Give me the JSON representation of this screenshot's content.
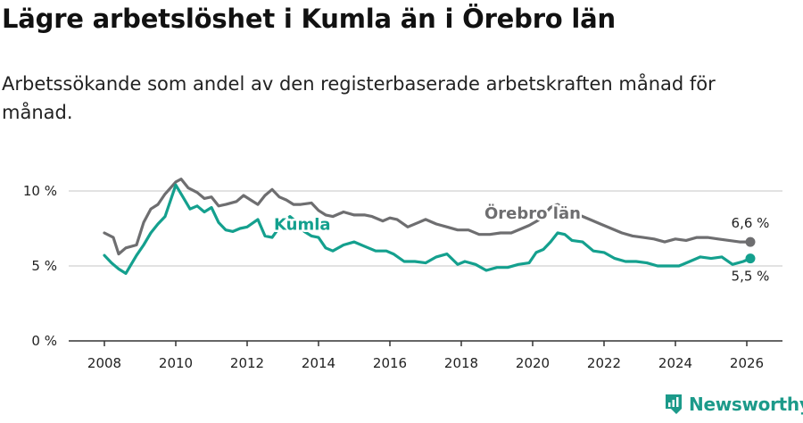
{
  "title": "Lägre arbetslöshet i Kumla än i Örebro län",
  "subtitle": "Arbetssökande som andel av den registerbaserade arbetskraften månad för månad.",
  "brand": {
    "name": "Newsworthy"
  },
  "colors": {
    "kumla": "#14a08e",
    "orebro": "#6e6e70",
    "grid": "#d9d9d9",
    "axis": "#333333"
  },
  "chart_data": {
    "type": "line",
    "title": "Lägre arbetslöshet i Kumla än i Örebro län",
    "xlabel": "",
    "ylabel": "",
    "xlim": [
      2007,
      2027
    ],
    "ylim": [
      0,
      10
    ],
    "x_ticks": [
      2008,
      2010,
      2012,
      2014,
      2016,
      2018,
      2020,
      2022,
      2024,
      2026
    ],
    "y_ticks": [
      {
        "value": 0,
        "label": "0 %"
      },
      {
        "value": 5,
        "label": "5 %"
      },
      {
        "value": 10,
        "label": "10 %"
      }
    ],
    "series": [
      {
        "name": "Örebro län",
        "label": "Örebro län",
        "end_label": "6,6 %",
        "x": [
          2008.0,
          2008.25,
          2008.4,
          2008.6,
          2008.9,
          2009.1,
          2009.3,
          2009.5,
          2009.7,
          2010.0,
          2010.15,
          2010.35,
          2010.6,
          2010.8,
          2011.0,
          2011.2,
          2011.4,
          2011.7,
          2011.9,
          2012.1,
          2012.3,
          2012.5,
          2012.7,
          2012.9,
          2013.1,
          2013.3,
          2013.5,
          2013.8,
          2014.0,
          2014.2,
          2014.4,
          2014.7,
          2015.0,
          2015.3,
          2015.5,
          2015.8,
          2016.0,
          2016.2,
          2016.5,
          2016.8,
          2017.0,
          2017.3,
          2017.6,
          2017.9,
          2018.2,
          2018.5,
          2018.8,
          2019.1,
          2019.4,
          2019.7,
          2019.9,
          2020.2,
          2020.5,
          2020.7,
          2021.0,
          2021.3,
          2021.6,
          2021.9,
          2022.2,
          2022.5,
          2022.8,
          2023.1,
          2023.4,
          2023.7,
          2024.0,
          2024.3,
          2024.6,
          2024.9,
          2025.2,
          2025.5,
          2025.8,
          2026.1
        ],
        "values": [
          7.2,
          6.9,
          5.8,
          6.2,
          6.4,
          7.9,
          8.8,
          9.1,
          9.8,
          10.6,
          10.8,
          10.2,
          9.9,
          9.5,
          9.6,
          9.0,
          9.1,
          9.3,
          9.7,
          9.4,
          9.1,
          9.7,
          10.1,
          9.6,
          9.4,
          9.1,
          9.1,
          9.2,
          8.7,
          8.4,
          8.3,
          8.6,
          8.4,
          8.4,
          8.3,
          8.0,
          8.2,
          8.1,
          7.6,
          7.9,
          8.1,
          7.8,
          7.6,
          7.4,
          7.4,
          7.1,
          7.1,
          7.2,
          7.2,
          7.5,
          7.7,
          8.1,
          8.9,
          9.1,
          8.7,
          8.4,
          8.1,
          7.8,
          7.5,
          7.2,
          7.0,
          6.9,
          6.8,
          6.6,
          6.8,
          6.7,
          6.9,
          6.9,
          6.8,
          6.7,
          6.6,
          6.6
        ]
      },
      {
        "name": "Kumla",
        "label": "Kumla",
        "end_label": "5,5 %",
        "x": [
          2008.0,
          2008.2,
          2008.4,
          2008.6,
          2008.9,
          2009.1,
          2009.3,
          2009.5,
          2009.7,
          2010.0,
          2010.2,
          2010.4,
          2010.6,
          2010.8,
          2011.0,
          2011.2,
          2011.4,
          2011.6,
          2011.8,
          2012.0,
          2012.3,
          2012.5,
          2012.7,
          2013.0,
          2013.2,
          2013.4,
          2013.6,
          2013.8,
          2014.0,
          2014.2,
          2014.4,
          2014.7,
          2015.0,
          2015.3,
          2015.6,
          2015.9,
          2016.1,
          2016.4,
          2016.7,
          2017.0,
          2017.3,
          2017.6,
          2017.9,
          2018.1,
          2018.4,
          2018.7,
          2019.0,
          2019.3,
          2019.6,
          2019.9,
          2020.1,
          2020.3,
          2020.5,
          2020.7,
          2020.9,
          2021.1,
          2021.4,
          2021.7,
          2022.0,
          2022.3,
          2022.6,
          2022.9,
          2023.2,
          2023.5,
          2023.8,
          2024.1,
          2024.4,
          2024.7,
          2025.0,
          2025.3,
          2025.6,
          2025.9,
          2026.1
        ],
        "values": [
          5.7,
          5.2,
          4.8,
          4.5,
          5.7,
          6.4,
          7.2,
          7.8,
          8.3,
          10.4,
          9.6,
          8.8,
          9.0,
          8.6,
          8.9,
          7.9,
          7.4,
          7.3,
          7.5,
          7.6,
          8.1,
          7.0,
          6.9,
          7.9,
          8.3,
          7.9,
          7.3,
          7.0,
          6.9,
          6.2,
          6.0,
          6.4,
          6.6,
          6.3,
          6.0,
          6.0,
          5.8,
          5.3,
          5.3,
          5.2,
          5.6,
          5.8,
          5.1,
          5.3,
          5.1,
          4.7,
          4.9,
          4.9,
          5.1,
          5.2,
          5.9,
          6.1,
          6.6,
          7.2,
          7.1,
          6.7,
          6.6,
          6.0,
          5.9,
          5.5,
          5.3,
          5.3,
          5.2,
          5.0,
          5.0,
          5.0,
          5.3,
          5.6,
          5.5,
          5.6,
          5.1,
          5.3,
          5.5
        ]
      }
    ]
  }
}
